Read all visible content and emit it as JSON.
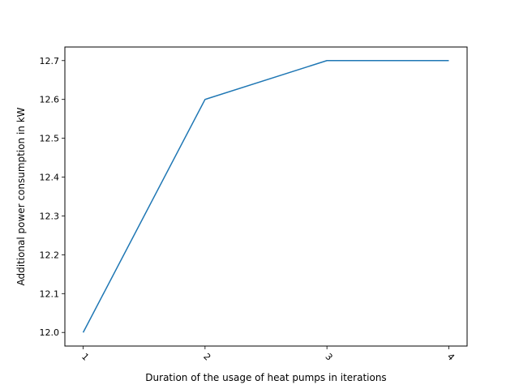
{
  "chart_data": {
    "type": "line",
    "title": "",
    "xlabel": "Duration of the usage of heat pumps in iterations",
    "ylabel": "Additional power consumption in kW",
    "x": [
      1,
      2,
      3,
      4
    ],
    "series": [
      {
        "values": [
          12.0,
          12.6,
          12.7,
          12.7
        ],
        "color": "#1f77b4"
      }
    ],
    "xticks": [
      "1",
      "2",
      "3",
      "4"
    ],
    "yticks": [
      "12.0",
      "12.1",
      "12.2",
      "12.3",
      "12.4",
      "12.5",
      "12.6",
      "12.7"
    ],
    "xlim": [
      0.85,
      4.15
    ],
    "ylim": [
      11.965,
      12.735
    ],
    "grid": false,
    "legend": false
  }
}
